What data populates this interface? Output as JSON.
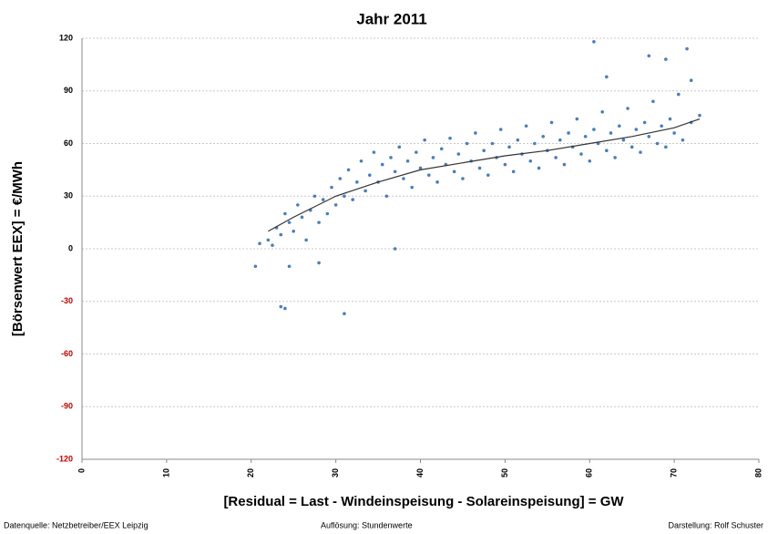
{
  "chart_data": {
    "type": "scatter",
    "title": "Jahr 2011",
    "x_label": "[Residual  =  Last - Windeinspeisung - Solareinspeisung] = GW",
    "y_label": "[Börsenwert EEX]  =  €/MWh",
    "footer": {
      "left": "Datenquelle: Netzbetreiber/EEX Leipzig",
      "center": "Auflösung: Stundenwerte",
      "right": "Darstellung: Rolf Schuster"
    },
    "xlim": [
      0,
      80
    ],
    "xticks": [
      0,
      10,
      20,
      30,
      40,
      50,
      60,
      70,
      80
    ],
    "ylim": [
      -120,
      120
    ],
    "yticks": [
      -120,
      -90,
      -60,
      -30,
      0,
      30,
      60,
      90,
      120
    ],
    "grid": true,
    "negative_tick_color": "#c00000",
    "series": [
      {
        "color": "#4a7ebb",
        "x": [
          21,
          22,
          22.5,
          23,
          23.5,
          24,
          24.5,
          25,
          25.5,
          26,
          26.5,
          27,
          27.5,
          28,
          28.5,
          29,
          29.5,
          30,
          30.5,
          31,
          31.5,
          32,
          32.5,
          33,
          33.5,
          34,
          34.5,
          35,
          35.5,
          36,
          36.5,
          37,
          37.5,
          38,
          38.5,
          39,
          39.5,
          40,
          40.5,
          41,
          41.5,
          42,
          42.5,
          43,
          43.5,
          44,
          44.5,
          45,
          45.5,
          46,
          46.5,
          47,
          47.5,
          48,
          48.5,
          49,
          49.5,
          50,
          50.5,
          51,
          51.5,
          52,
          52.5,
          53,
          53.5,
          54,
          54.5,
          55,
          55.5,
          56,
          56.5,
          57,
          57.5,
          58,
          58.5,
          59,
          59.5,
          60,
          60.5,
          61,
          61.5,
          62,
          62.5,
          63,
          63.5,
          64,
          64.5,
          65,
          65.5,
          66,
          66.5,
          67,
          67.5,
          68,
          68.5,
          69,
          69.5,
          70,
          70.5,
          71,
          72,
          73,
          20.5,
          23.5,
          24,
          31,
          24.5,
          28,
          37,
          60.5,
          71.5,
          67,
          69,
          72,
          62
        ],
        "values": [
          3,
          5,
          2,
          12,
          8,
          20,
          15,
          10,
          25,
          18,
          5,
          22,
          30,
          15,
          28,
          20,
          35,
          25,
          40,
          30,
          45,
          28,
          38,
          50,
          33,
          42,
          55,
          38,
          48,
          30,
          52,
          44,
          58,
          40,
          50,
          35,
          55,
          46,
          62,
          42,
          52,
          38,
          57,
          48,
          63,
          44,
          54,
          40,
          60,
          50,
          66,
          46,
          56,
          42,
          60,
          52,
          68,
          48,
          58,
          44,
          62,
          54,
          70,
          50,
          60,
          46,
          64,
          56,
          72,
          52,
          62,
          48,
          66,
          58,
          74,
          54,
          64,
          50,
          68,
          60,
          78,
          56,
          66,
          52,
          70,
          62,
          80,
          58,
          68,
          55,
          72,
          64,
          84,
          60,
          70,
          58,
          74,
          66,
          88,
          62,
          72,
          76,
          -10,
          -33,
          -34,
          -37,
          -10,
          -8,
          0,
          118,
          114,
          110,
          108,
          96,
          98
        ]
      }
    ],
    "trendline": {
      "color": "#333333",
      "x": [
        22,
        25,
        30,
        35,
        40,
        45,
        50,
        55,
        60,
        65,
        70,
        73
      ],
      "values": [
        10,
        18,
        30,
        38,
        45,
        49,
        53,
        56,
        60,
        64,
        69,
        74
      ]
    }
  }
}
